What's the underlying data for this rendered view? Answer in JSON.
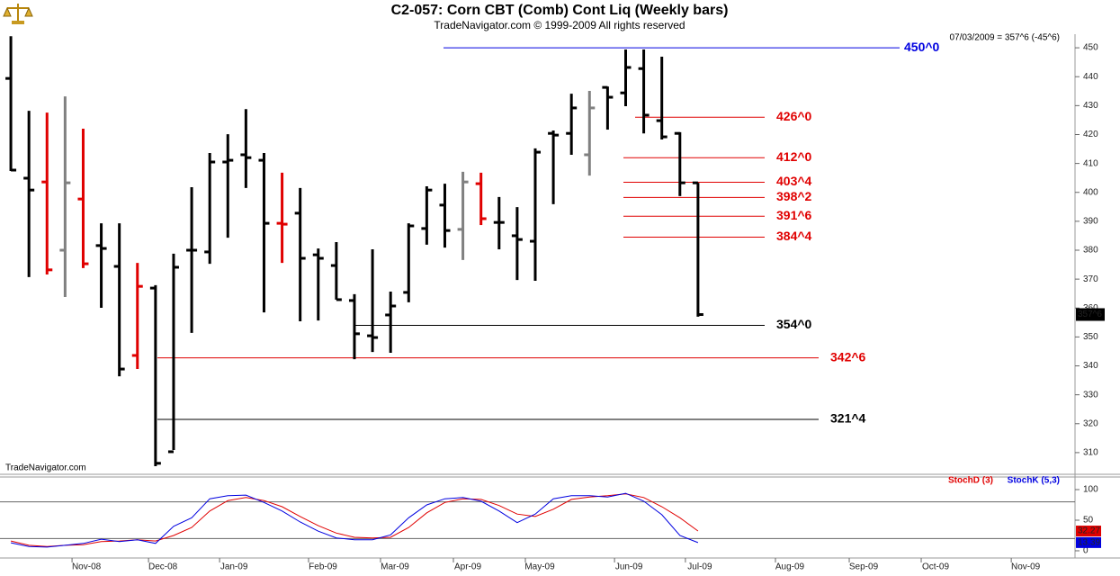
{
  "chart_data": [
    {
      "type": "ohlc",
      "title": "C2-057:  Corn CBT (Comb) Cont Liq  (Weekly bars)",
      "subtitle": "TradeNavigator.com © 1999-2009 All rights reserved",
      "info": "07/03/2009 = 357^6 (-45^6)",
      "watermark": "TradeNavigator.com",
      "open": [
        439.4,
        404.9,
        403.6,
        380.0,
        397.7,
        381.6,
        374.4,
        343.6,
        366.9,
        310.3,
        380.0,
        379.4,
        410.5,
        413.0,
        411.1,
        389.3,
        392.8,
        378.4,
        374.7,
        362.6,
        350.4,
        357.6,
        365.4,
        387.5,
        395.6,
        387.2,
        403.0,
        389.6,
        385.0,
        383.1,
        420.4,
        420.4,
        413.0,
        436.3,
        434.4,
        442.8,
        424.8,
        420.4,
        403.3
      ],
      "high": [
        454.0,
        428.2,
        427.6,
        433.2,
        422.0,
        389.3,
        389.3,
        375.6,
        367.9,
        378.8,
        401.8,
        413.6,
        420.1,
        428.8,
        413.6,
        406.8,
        401.5,
        380.6,
        382.8,
        364.8,
        380.3,
        365.7,
        389.3,
        402.1,
        403.0,
        407.1,
        406.8,
        398.4,
        394.9,
        415.2,
        421.4,
        434.1,
        435.1,
        436.6,
        449.4,
        449.4,
        446.9,
        420.8,
        403.3
      ],
      "low": [
        407.4,
        370.7,
        371.6,
        363.8,
        373.8,
        360.1,
        336.4,
        338.9,
        305.3,
        310.9,
        351.4,
        375.3,
        384.3,
        401.5,
        358.5,
        375.6,
        355.4,
        355.7,
        362.9,
        342.3,
        344.8,
        344.5,
        362.0,
        381.9,
        380.9,
        376.6,
        388.7,
        380.3,
        369.7,
        369.4,
        395.9,
        413.0,
        405.8,
        421.7,
        429.8,
        420.4,
        418.3,
        398.7,
        357.0
      ],
      "close": [
        407.7,
        400.8,
        373.2,
        403.3,
        375.3,
        380.6,
        338.9,
        367.5,
        306.3,
        374.1,
        380.0,
        410.5,
        411.1,
        412.0,
        389.3,
        389.0,
        377.2,
        377.2,
        362.9,
        351.1,
        349.8,
        360.7,
        388.4,
        400.8,
        386.8,
        403.6,
        390.9,
        389.6,
        383.7,
        413.9,
        419.8,
        429.2,
        429.2,
        432.9,
        443.2,
        426.7,
        419.2,
        403.3,
        357.75
      ],
      "colors": [
        "#000000",
        "#000000",
        "#e00000",
        "#808080",
        "#e00000",
        "#000000",
        "#000000",
        "#e00000",
        "#000000",
        "#000000",
        "#000000",
        "#000000",
        "#000000",
        "#000000",
        "#000000",
        "#e00000",
        "#000000",
        "#000000",
        "#000000",
        "#000000",
        "#000000",
        "#000000",
        "#000000",
        "#000000",
        "#000000",
        "#808080",
        "#e00000",
        "#000000",
        "#000000",
        "#000000",
        "#000000",
        "#000000",
        "#808080",
        "#000000",
        "#000000",
        "#000000",
        "#000000",
        "#000000",
        "#000000"
      ],
      "last_label": "357^6",
      "levels": [
        {
          "value": 450,
          "label": "450^0",
          "color": "#0000e0"
        },
        {
          "value": 426,
          "label": "426^0",
          "color": "#e00000"
        },
        {
          "value": 412,
          "label": "412^0",
          "color": "#e00000"
        },
        {
          "value": 403.5,
          "label": "403^4",
          "color": "#e00000"
        },
        {
          "value": 398.25,
          "label": "398^2",
          "color": "#e00000"
        },
        {
          "value": 391.75,
          "label": "391^6",
          "color": "#e00000"
        },
        {
          "value": 384.5,
          "label": "384^4",
          "color": "#e00000"
        },
        {
          "value": 354,
          "label": "354^0",
          "color": "#000000"
        },
        {
          "value": 342.75,
          "label": "342^6",
          "color": "#e00000"
        },
        {
          "value": 321.5,
          "label": "321^4",
          "color": "#000000"
        }
      ],
      "ylim": [
        302.5,
        454.7
      ],
      "yticks": [
        310,
        320,
        330,
        340,
        350,
        360,
        370,
        380,
        390,
        400,
        410,
        420,
        430,
        440,
        450
      ],
      "xlim": [
        -0.6,
        58.85
      ],
      "xticks": [
        {
          "value": 4.18,
          "label": "Nov-08"
        },
        {
          "value": 8.41,
          "label": "Dec-08"
        },
        {
          "value": 12.34,
          "label": "Jan-09"
        },
        {
          "value": 17.26,
          "label": "Feb-09"
        },
        {
          "value": 21.24,
          "label": "Mar-09"
        },
        {
          "value": 25.27,
          "label": "Apr-09"
        },
        {
          "value": 29.25,
          "label": "May-09"
        },
        {
          "value": 34.18,
          "label": "Jun-09"
        },
        {
          "value": 38.1,
          "label": "Jul-09"
        },
        {
          "value": 43.08,
          "label": "Aug-09"
        },
        {
          "value": 47.16,
          "label": "Sep-09"
        },
        {
          "value": 51.14,
          "label": "Oct-09"
        },
        {
          "value": 56.12,
          "label": "Nov-09"
        }
      ]
    },
    {
      "type": "line",
      "series": [
        {
          "name": "StochD (3)",
          "color": "#e00000",
          "values": [
            16,
            9,
            7,
            9,
            10,
            15,
            16,
            18,
            16,
            25,
            38,
            65,
            82,
            87,
            82,
            72,
            56,
            41,
            29,
            22,
            21,
            22,
            38,
            62,
            79,
            85,
            84,
            74,
            60,
            56,
            68,
            84,
            88,
            90,
            93,
            87,
            72,
            54,
            32.27
          ]
        },
        {
          "name": "StochK (5,3)",
          "color": "#0000e0",
          "values": [
            13,
            7,
            6,
            9,
            12,
            19,
            15,
            18,
            12,
            40,
            54,
            85,
            90,
            91,
            79,
            65,
            47,
            32,
            21,
            18,
            18,
            26,
            54,
            75,
            85,
            87,
            81,
            65,
            46,
            60,
            85,
            90,
            90,
            88,
            94,
            81,
            59,
            25,
            13.39
          ]
        }
      ],
      "ylim": [
        -11.8,
        120.6
      ],
      "yticks": [
        0,
        50,
        100
      ],
      "levels": [
        20,
        80
      ]
    }
  ]
}
